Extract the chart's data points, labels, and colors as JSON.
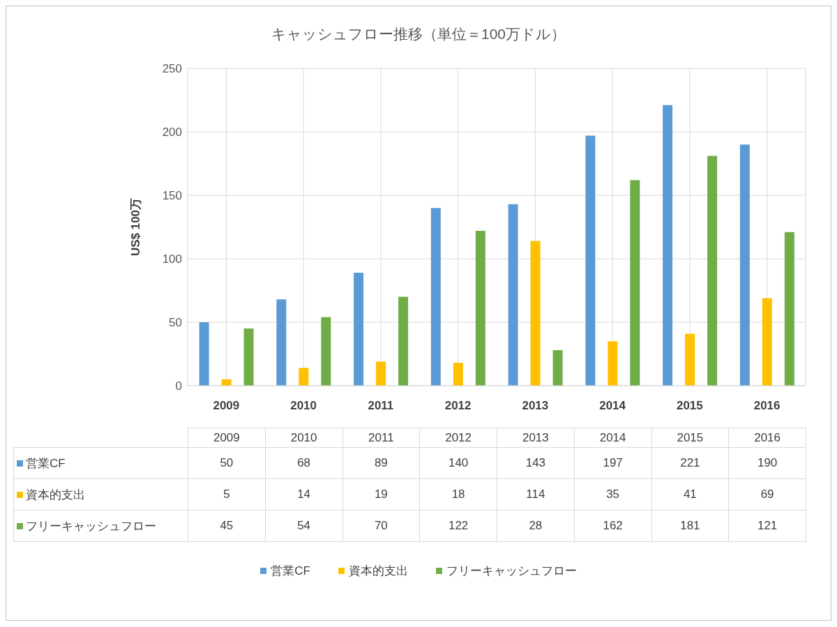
{
  "chart_data": {
    "type": "bar",
    "title": "キャッシュフロー推移（単位＝100万ドル）",
    "ylabel": "US$ 100万",
    "categories": [
      "2009",
      "2010",
      "2011",
      "2012",
      "2013",
      "2014",
      "2015",
      "2016"
    ],
    "series": [
      {
        "name": "営業CF",
        "color": "#5b9bd5",
        "values": [
          50,
          68,
          89,
          140,
          143,
          197,
          221,
          190
        ]
      },
      {
        "name": "資本的支出",
        "color": "#ffc000",
        "values": [
          5,
          14,
          19,
          18,
          114,
          35,
          41,
          69
        ]
      },
      {
        "name": "フリーキャッシュフロー",
        "color": "#70ad47",
        "values": [
          45,
          54,
          70,
          122,
          28,
          162,
          181,
          121
        ]
      }
    ],
    "ylim": [
      0,
      250
    ],
    "yticks": [
      0,
      50,
      100,
      150,
      200,
      250
    ],
    "grid": true,
    "legend": "bottom",
    "data_labels": true
  }
}
